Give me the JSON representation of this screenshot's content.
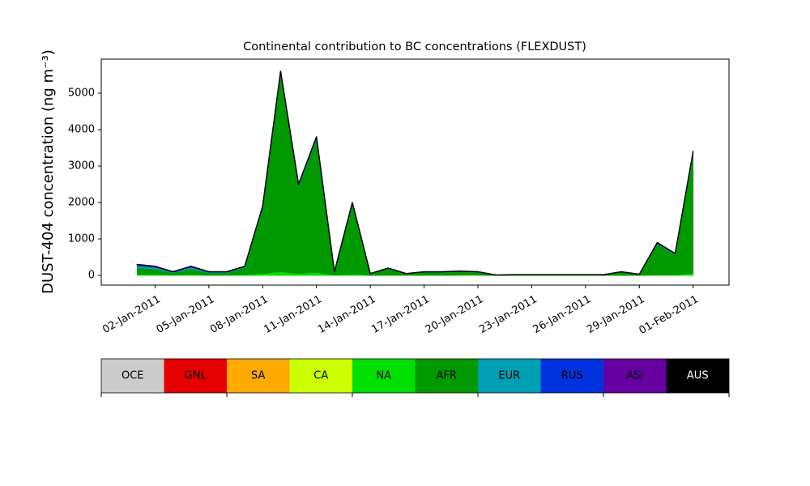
{
  "chart_data": {
    "type": "stacked_area",
    "title": "Continental contribution to BC concentrations (FLEXDUST)",
    "y_label": "DUST-404 concentration (ng m⁻³)",
    "x": [
      "2011-01-01",
      "2011-01-02",
      "2011-01-03",
      "2011-01-04",
      "2011-01-05",
      "2011-01-06",
      "2011-01-07",
      "2011-01-08",
      "2011-01-09",
      "2011-01-10",
      "2011-01-11",
      "2011-01-12",
      "2011-01-13",
      "2011-01-14",
      "2011-01-15",
      "2011-01-16",
      "2011-01-17",
      "2011-01-18",
      "2011-01-19",
      "2011-01-20",
      "2011-01-21",
      "2011-01-22",
      "2011-01-23",
      "2011-01-24",
      "2011-01-25",
      "2011-01-26",
      "2011-01-27",
      "2011-01-28",
      "2011-01-29",
      "2011-01-30",
      "2011-01-31",
      "2011-02-01"
    ],
    "xlim": [
      "2010-12-30",
      "2011-02-03"
    ],
    "xticks": [
      {
        "value": "2011-01-02",
        "label": "02-Jan-2011"
      },
      {
        "value": "2011-01-05",
        "label": "05-Jan-2011"
      },
      {
        "value": "2011-01-08",
        "label": "08-Jan-2011"
      },
      {
        "value": "2011-01-11",
        "label": "11-Jan-2011"
      },
      {
        "value": "2011-01-14",
        "label": "14-Jan-2011"
      },
      {
        "value": "2011-01-17",
        "label": "17-Jan-2011"
      },
      {
        "value": "2011-01-20",
        "label": "20-Jan-2011"
      },
      {
        "value": "2011-01-23",
        "label": "23-Jan-2011"
      },
      {
        "value": "2011-01-26",
        "label": "26-Jan-2011"
      },
      {
        "value": "2011-01-29",
        "label": "29-Jan-2011"
      },
      {
        "value": "2011-02-01",
        "label": "01-Feb-2011"
      }
    ],
    "ylim": [
      -267,
      5933
    ],
    "yticks": [
      0,
      1000,
      2000,
      3000,
      4000,
      5000
    ],
    "series": [
      {
        "name": "OCE",
        "color": "#cccccc",
        "values": [
          0,
          0,
          0,
          0,
          0,
          0,
          0,
          0,
          0,
          0,
          0,
          0,
          0,
          0,
          0,
          0,
          0,
          0,
          0,
          0,
          0,
          0,
          0,
          0,
          0,
          0,
          0,
          0,
          0,
          0,
          0,
          0
        ]
      },
      {
        "name": "GNL",
        "color": "#e60000",
        "values": [
          0,
          0,
          0,
          0,
          0,
          0,
          0,
          0,
          0,
          0,
          0,
          0,
          0,
          0,
          0,
          0,
          0,
          0,
          0,
          0,
          0,
          0,
          0,
          0,
          0,
          0,
          0,
          0,
          0,
          0,
          0,
          0
        ]
      },
      {
        "name": "SA",
        "color": "#ffaa00",
        "values": [
          0,
          0,
          0,
          0,
          0,
          0,
          0,
          0,
          0,
          0,
          0,
          0,
          0,
          0,
          0,
          0,
          0,
          0,
          0,
          0,
          0,
          0,
          0,
          0,
          0,
          0,
          0,
          0,
          0,
          0,
          0,
          0
        ]
      },
      {
        "name": "CA",
        "color": "#ccff00",
        "values": [
          0,
          0,
          0,
          0,
          0,
          0,
          0,
          0,
          0,
          0,
          0,
          0,
          0,
          0,
          0,
          0,
          0,
          0,
          5,
          5,
          0,
          0,
          0,
          0,
          0,
          0,
          0,
          0,
          0,
          0,
          0,
          0
        ]
      },
      {
        "name": "NA",
        "color": "#00e000",
        "values": [
          30,
          30,
          10,
          30,
          10,
          10,
          20,
          50,
          100,
          50,
          80,
          5,
          40,
          2,
          5,
          2,
          5,
          5,
          5,
          5,
          1,
          1,
          1,
          1,
          1,
          1,
          1,
          3,
          1,
          20,
          15,
          60
        ]
      },
      {
        "name": "AFR",
        "color": "#009900",
        "values": [
          175,
          145,
          60,
          145,
          60,
          60,
          195,
          1790,
          5400,
          2390,
          3645,
          85,
          1900,
          42,
          175,
          42,
          80,
          80,
          90,
          75,
          6,
          16,
          16,
          16,
          16,
          16,
          16,
          86,
          26,
          840,
          560,
          3265
        ]
      },
      {
        "name": "EUR",
        "color": "#00a0b4",
        "values": [
          60,
          50,
          20,
          50,
          20,
          20,
          20,
          30,
          50,
          30,
          40,
          5,
          30,
          3,
          10,
          3,
          5,
          5,
          10,
          5,
          1,
          1,
          1,
          1,
          1,
          1,
          1,
          5,
          1,
          20,
          15,
          40
        ]
      },
      {
        "name": "RUS",
        "color": "#0033dd",
        "values": [
          20,
          15,
          5,
          15,
          5,
          5,
          10,
          20,
          30,
          20,
          20,
          3,
          20,
          2,
          5,
          2,
          5,
          5,
          5,
          5,
          1,
          1,
          1,
          1,
          1,
          1,
          1,
          3,
          1,
          10,
          5,
          20
        ]
      },
      {
        "name": "ASI",
        "color": "#6600a0",
        "values": [
          15,
          10,
          5,
          10,
          5,
          5,
          5,
          10,
          20,
          10,
          15,
          2,
          10,
          1,
          5,
          1,
          5,
          5,
          5,
          5,
          1,
          1,
          1,
          1,
          1,
          1,
          1,
          3,
          1,
          10,
          5,
          15
        ]
      },
      {
        "name": "AUS",
        "color": "#000000",
        "values": [
          0,
          0,
          0,
          0,
          0,
          0,
          0,
          0,
          0,
          0,
          0,
          0,
          0,
          0,
          0,
          0,
          0,
          0,
          0,
          0,
          0,
          0,
          0,
          0,
          0,
          0,
          0,
          0,
          0,
          0,
          0,
          0
        ]
      }
    ]
  }
}
